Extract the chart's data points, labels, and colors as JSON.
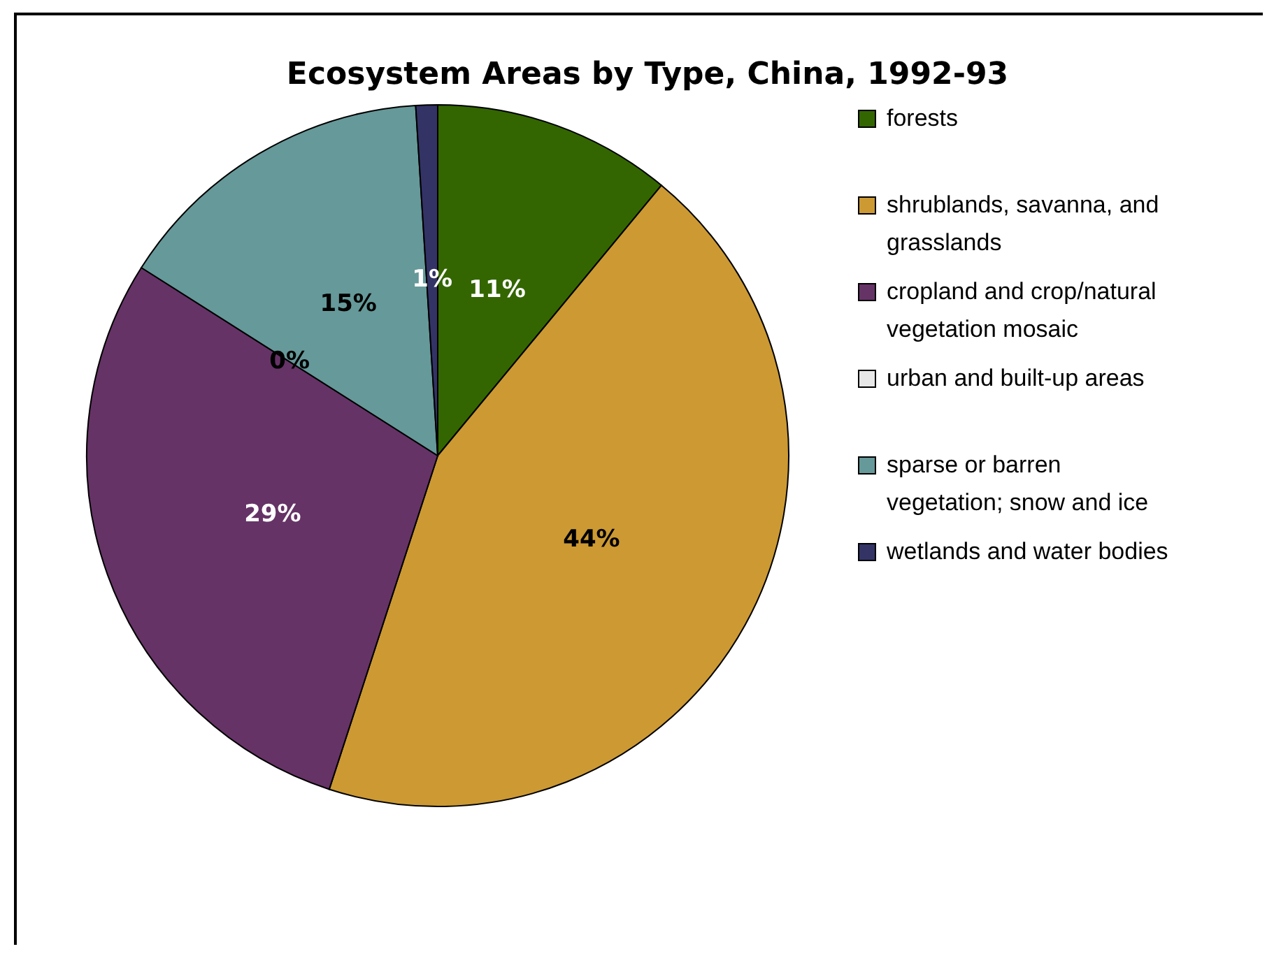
{
  "chart_data": {
    "type": "pie",
    "title": "Ecosystem Areas by Type, China, 1992-93",
    "categories": [
      "forests",
      "shrublands, savanna, and grasslands",
      "cropland and crop/natural vegetation mosaic",
      "urban and built-up areas",
      "sparse or barren vegetation; snow and ice",
      "wetlands and water bodies"
    ],
    "values": [
      11,
      44,
      29,
      0,
      15,
      1
    ],
    "colors": [
      "#336600",
      "#cc9933",
      "#663366",
      "#e8e8e8",
      "#669999",
      "#333366"
    ],
    "value_labels": [
      "11%",
      "44%",
      "29%",
      "0%",
      "15%",
      "1%"
    ],
    "legend": "right"
  }
}
